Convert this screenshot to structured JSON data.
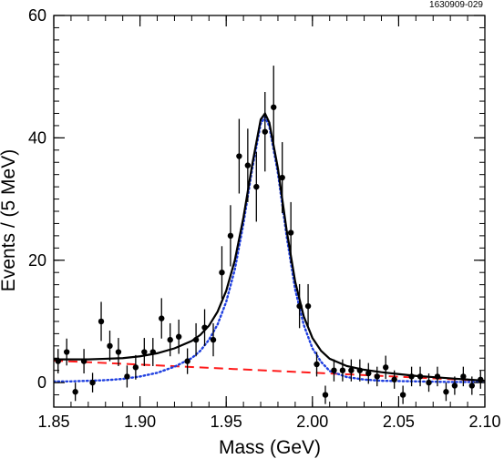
{
  "chart_data": {
    "type": "scatter",
    "title": "",
    "xlabel": "Mass (GeV)",
    "ylabel": "Events / (5 MeV)",
    "figure_id": "1630909-029",
    "xlim": [
      1.85,
      2.1
    ],
    "ylim": [
      -4,
      60
    ],
    "x_ticks": [
      1.85,
      1.9,
      1.95,
      2.0,
      2.05,
      2.1
    ],
    "x_tick_labels": [
      "1.85",
      "1.90",
      "1.95",
      "2.00",
      "2.05",
      "2.10"
    ],
    "y_ticks": [
      0,
      20,
      40,
      60
    ],
    "y_tick_labels": [
      "0",
      "20",
      "40",
      "60"
    ],
    "grid": false,
    "legend": "none",
    "series": [
      {
        "kind": "points_with_error_bars",
        "color": "#000000",
        "points": [
          {
            "x": 1.8525,
            "y": 3.5,
            "err": 2.0
          },
          {
            "x": 1.8575,
            "y": 5.0,
            "err": 2.2
          },
          {
            "x": 1.8625,
            "y": -1.5,
            "err": 1.5
          },
          {
            "x": 1.8675,
            "y": 3.5,
            "err": 2.0
          },
          {
            "x": 1.8725,
            "y": 0.0,
            "err": 1.6
          },
          {
            "x": 1.8775,
            "y": 10.0,
            "err": 3.2
          },
          {
            "x": 1.8825,
            "y": 6.0,
            "err": 2.5
          },
          {
            "x": 1.8875,
            "y": 5.0,
            "err": 2.3
          },
          {
            "x": 1.8925,
            "y": 1.0,
            "err": 1.8
          },
          {
            "x": 1.8975,
            "y": 2.5,
            "err": 2.0
          },
          {
            "x": 1.9025,
            "y": 5.0,
            "err": 2.3
          },
          {
            "x": 1.9075,
            "y": 5.0,
            "err": 2.3
          },
          {
            "x": 1.9125,
            "y": 10.5,
            "err": 3.3
          },
          {
            "x": 1.9175,
            "y": 7.0,
            "err": 2.7
          },
          {
            "x": 1.9225,
            "y": 7.5,
            "err": 2.8
          },
          {
            "x": 1.9275,
            "y": 3.5,
            "err": 2.1
          },
          {
            "x": 1.9325,
            "y": 7.0,
            "err": 2.7
          },
          {
            "x": 1.9375,
            "y": 9.0,
            "err": 3.0
          },
          {
            "x": 1.9425,
            "y": 7.0,
            "err": 2.7
          },
          {
            "x": 1.9475,
            "y": 18.0,
            "err": 4.3
          },
          {
            "x": 1.9525,
            "y": 24.0,
            "err": 5.0
          },
          {
            "x": 1.9575,
            "y": 37.0,
            "err": 6.1
          },
          {
            "x": 1.9625,
            "y": 35.5,
            "err": 6.0
          },
          {
            "x": 1.9675,
            "y": 32.0,
            "err": 5.7
          },
          {
            "x": 1.9725,
            "y": 41.0,
            "err": 6.5
          },
          {
            "x": 1.9775,
            "y": 45.0,
            "err": 6.8
          },
          {
            "x": 1.9825,
            "y": 33.5,
            "err": 5.8
          },
          {
            "x": 1.9875,
            "y": 24.5,
            "err": 5.0
          },
          {
            "x": 1.9925,
            "y": 12.5,
            "err": 3.6
          },
          {
            "x": 1.9975,
            "y": 12.5,
            "err": 3.6
          },
          {
            "x": 2.0025,
            "y": 3.0,
            "err": 2.0
          },
          {
            "x": 2.0075,
            "y": -2.0,
            "err": 1.5
          },
          {
            "x": 2.0125,
            "y": 2.0,
            "err": 1.8
          },
          {
            "x": 2.0175,
            "y": 2.0,
            "err": 1.8
          },
          {
            "x": 2.0225,
            "y": 2.0,
            "err": 1.8
          },
          {
            "x": 2.0275,
            "y": 2.0,
            "err": 1.8
          },
          {
            "x": 2.0325,
            "y": 1.5,
            "err": 1.7
          },
          {
            "x": 2.0375,
            "y": 1.0,
            "err": 1.6
          },
          {
            "x": 2.0425,
            "y": 2.5,
            "err": 1.9
          },
          {
            "x": 2.0475,
            "y": 0.5,
            "err": 1.5
          },
          {
            "x": 2.0525,
            "y": -2.0,
            "err": 1.5
          },
          {
            "x": 2.0575,
            "y": 1.0,
            "err": 1.6
          },
          {
            "x": 2.0625,
            "y": 1.0,
            "err": 1.6
          },
          {
            "x": 2.0675,
            "y": 0.0,
            "err": 1.5
          },
          {
            "x": 2.0725,
            "y": 1.0,
            "err": 1.6
          },
          {
            "x": 2.0775,
            "y": -1.5,
            "err": 1.5
          },
          {
            "x": 2.0825,
            "y": -0.5,
            "err": 1.5
          },
          {
            "x": 2.0875,
            "y": 1.0,
            "err": 1.6
          },
          {
            "x": 2.0925,
            "y": -0.5,
            "err": 1.5
          },
          {
            "x": 2.0975,
            "y": 0.5,
            "err": 1.5
          }
        ]
      },
      {
        "kind": "line",
        "style": "solid",
        "color": "#000000",
        "points": [
          [
            1.85,
            3.8
          ],
          [
            1.86,
            3.8
          ],
          [
            1.87,
            3.8
          ],
          [
            1.88,
            3.9
          ],
          [
            1.89,
            4.0
          ],
          [
            1.9,
            4.3
          ],
          [
            1.91,
            4.8
          ],
          [
            1.92,
            5.6
          ],
          [
            1.93,
            6.8
          ],
          [
            1.935,
            7.8
          ],
          [
            1.94,
            9.3
          ],
          [
            1.945,
            11.6
          ],
          [
            1.95,
            15.0
          ],
          [
            1.955,
            20.0
          ],
          [
            1.96,
            27.0
          ],
          [
            1.965,
            35.5
          ],
          [
            1.97,
            43.0
          ],
          [
            1.9725,
            44.0
          ],
          [
            1.975,
            42.5
          ],
          [
            1.98,
            35.0
          ],
          [
            1.985,
            25.0
          ],
          [
            1.99,
            16.5
          ],
          [
            1.995,
            10.8
          ],
          [
            2.0,
            7.3
          ],
          [
            2.005,
            5.2
          ],
          [
            2.01,
            3.9
          ],
          [
            2.02,
            2.7
          ],
          [
            2.03,
            2.1
          ],
          [
            2.04,
            1.7
          ],
          [
            2.05,
            1.4
          ],
          [
            2.06,
            1.1
          ],
          [
            2.07,
            0.9
          ],
          [
            2.08,
            0.7
          ],
          [
            2.09,
            0.5
          ],
          [
            2.1,
            0.3
          ]
        ]
      },
      {
        "kind": "line",
        "style": "dotted",
        "color": "#1f3fe0",
        "points": [
          [
            1.85,
            0.2
          ],
          [
            1.86,
            0.2
          ],
          [
            1.87,
            0.3
          ],
          [
            1.88,
            0.4
          ],
          [
            1.89,
            0.6
          ],
          [
            1.9,
            1.0
          ],
          [
            1.91,
            1.6
          ],
          [
            1.92,
            2.6
          ],
          [
            1.93,
            4.0
          ],
          [
            1.935,
            5.2
          ],
          [
            1.94,
            7.0
          ],
          [
            1.945,
            9.5
          ],
          [
            1.95,
            13.2
          ],
          [
            1.955,
            18.5
          ],
          [
            1.96,
            26.0
          ],
          [
            1.965,
            34.8
          ],
          [
            1.97,
            42.3
          ],
          [
            1.9725,
            43.4
          ],
          [
            1.975,
            41.9
          ],
          [
            1.98,
            34.2
          ],
          [
            1.985,
            24.0
          ],
          [
            1.99,
            15.2
          ],
          [
            1.995,
            9.4
          ],
          [
            2.0,
            5.6
          ],
          [
            2.005,
            3.4
          ],
          [
            2.01,
            1.9
          ],
          [
            2.02,
            0.9
          ],
          [
            2.03,
            0.5
          ],
          [
            2.04,
            0.3
          ],
          [
            2.06,
            0.2
          ],
          [
            2.08,
            0.1
          ],
          [
            2.1,
            0.1
          ]
        ]
      },
      {
        "kind": "line",
        "style": "dashed",
        "color": "#ff1a1a",
        "points": [
          [
            1.85,
            3.6
          ],
          [
            2.1,
            0.3
          ]
        ]
      }
    ]
  }
}
